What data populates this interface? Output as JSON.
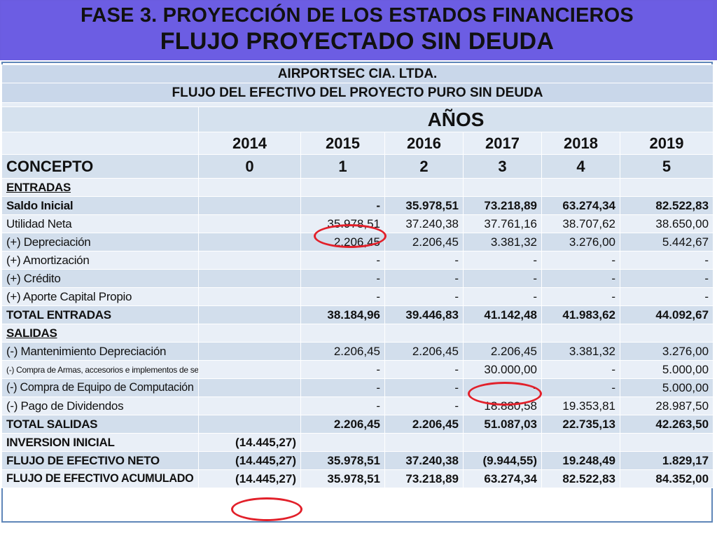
{
  "title": {
    "line1": "FASE 3. PROYECCIÓN DE LOS ESTADOS FINANCIEROS",
    "line2": "FLUJO PROYECTADO SIN DEUDA"
  },
  "table": {
    "company": "AIRPORTSEC CIA. LTDA.",
    "report_title": "FLUJO DEL EFECTIVO DEL PROYECTO PURO SIN DEUDA",
    "years_heading": "AÑOS",
    "years": [
      "2014",
      "2015",
      "2016",
      "2017",
      "2018",
      "2019"
    ],
    "concept_label": "CONCEPTO",
    "periods": [
      "0",
      "1",
      "2",
      "3",
      "4",
      "5"
    ],
    "rows": [
      {
        "label": "ENTRADAS",
        "values": [
          "",
          "",
          "",
          "",
          "",
          ""
        ]
      },
      {
        "label": "Saldo Inicial",
        "values": [
          "",
          "-",
          "35.978,51",
          "73.218,89",
          "63.274,34",
          "82.522,83"
        ]
      },
      {
        "label": "Utilidad Neta",
        "values": [
          "",
          "35.978,51",
          "37.240,38",
          "37.761,16",
          "38.707,62",
          "38.650,00"
        ]
      },
      {
        "label": "(+) Depreciación",
        "values": [
          "",
          "2.206,45",
          "2.206,45",
          "3.381,32",
          "3.276,00",
          "5.442,67"
        ]
      },
      {
        "label": "(+) Amortización",
        "values": [
          "",
          "-",
          "-",
          "-",
          "-",
          "-"
        ]
      },
      {
        "label": "(+) Crédito",
        "values": [
          "",
          "-",
          "-",
          "-",
          "-",
          "-"
        ]
      },
      {
        "label": "(+) Aporte Capital Propio",
        "values": [
          "",
          "-",
          "-",
          "-",
          "-",
          "-"
        ]
      },
      {
        "label": "TOTAL ENTRADAS",
        "values": [
          "",
          "38.184,96",
          "39.446,83",
          "41.142,48",
          "41.983,62",
          "44.092,67"
        ]
      },
      {
        "label": "SALIDAS",
        "values": [
          "",
          "",
          "",
          "",
          "",
          ""
        ]
      },
      {
        "label": "(-) Mantenimiento Depreciación",
        "values": [
          "",
          "2.206,45",
          "2.206,45",
          "2.206,45",
          "3.381,32",
          "3.276,00"
        ]
      },
      {
        "label": "(-) Compra  de Armas, accesorios e implementos de segurida",
        "values": [
          "",
          "-",
          "-",
          "30.000,00",
          "-",
          "5.000,00"
        ]
      },
      {
        "label": "(-) Compra de Equipo de Computación",
        "values": [
          "",
          "-",
          "-",
          "-",
          "-",
          "5.000,00"
        ]
      },
      {
        "label": "(-) Pago de Dividendos",
        "values": [
          "",
          "-",
          "-",
          "18.880,58",
          "19.353,81",
          "28.987,50"
        ]
      },
      {
        "label": "TOTAL SALIDAS",
        "values": [
          "",
          "2.206,45",
          "2.206,45",
          "51.087,03",
          "22.735,13",
          "42.263,50"
        ]
      },
      {
        "label": "INVERSION INICIAL",
        "values": [
          "(14.445,27)",
          "",
          "",
          "",
          "",
          ""
        ]
      },
      {
        "label": "FLUJO DE EFECTIVO NETO",
        "values": [
          "(14.445,27)",
          "35.978,51",
          "37.240,38",
          "(9.944,55)",
          "19.248,49",
          "1.829,17"
        ]
      },
      {
        "label": "FLUJO DE EFECTIVO ACUMULADO",
        "values": [
          "(14.445,27)",
          "35.978,51",
          "73.218,89",
          "63.274,34",
          "82.522,83",
          "84.352,00"
        ]
      }
    ]
  },
  "colors": {
    "banner": "#6c5de3",
    "header_blue": "#c9d7ea",
    "band_dark": "#d2deec",
    "band_light": "#e9eff7",
    "highlight_circle": "#e2202a"
  }
}
